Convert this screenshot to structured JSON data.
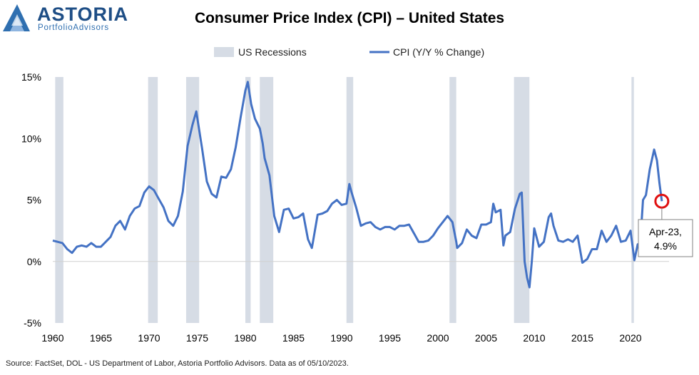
{
  "logo": {
    "name": "ASTORIA",
    "tagline": "PortfolioAdvisors"
  },
  "chart_data": {
    "type": "line",
    "title": "Consumer Price Index (CPI) – United States",
    "xlabel": "",
    "ylabel": "",
    "xlim": [
      1960,
      2024
    ],
    "ylim": [
      -5,
      15
    ],
    "x_ticks": [
      1960,
      1965,
      1970,
      1975,
      1980,
      1985,
      1990,
      1995,
      2000,
      2005,
      2010,
      2015,
      2020
    ],
    "y_ticks": [
      {
        "v": -5,
        "label": "-5%"
      },
      {
        "v": 0,
        "label": "0%"
      },
      {
        "v": 5,
        "label": "5%"
      },
      {
        "v": 10,
        "label": "10%"
      },
      {
        "v": 15,
        "label": "15%"
      }
    ],
    "legend_position": "top-center",
    "legend": [
      {
        "label": "US Recessions",
        "kind": "band"
      },
      {
        "label": "CPI (Y/Y % Change)",
        "kind": "line"
      }
    ],
    "recessions": {
      "name": "US Recessions",
      "color": "#d6dce5",
      "periods": [
        [
          1960.25,
          1961.1
        ],
        [
          1969.9,
          1970.9
        ],
        [
          1973.85,
          1975.2
        ],
        [
          1980.0,
          1980.55
        ],
        [
          1981.5,
          1982.9
        ],
        [
          1990.5,
          1991.2
        ],
        [
          2001.2,
          2001.9
        ],
        [
          2007.9,
          2009.5
        ],
        [
          2020.1,
          2020.35
        ]
      ]
    },
    "series": [
      {
        "name": "CPI (Y/Y % Change)",
        "color": "#4472c4",
        "x": [
          1960.0,
          1960.5,
          1961.0,
          1961.5,
          1962.0,
          1962.5,
          1963.0,
          1963.5,
          1964.0,
          1964.5,
          1965.0,
          1965.5,
          1966.0,
          1966.5,
          1967.0,
          1967.5,
          1968.0,
          1968.5,
          1969.0,
          1969.5,
          1970.0,
          1970.5,
          1971.0,
          1971.5,
          1972.0,
          1972.5,
          1973.0,
          1973.5,
          1974.0,
          1974.5,
          1974.9,
          1975.5,
          1976.0,
          1976.5,
          1977.0,
          1977.5,
          1978.0,
          1978.5,
          1979.0,
          1979.5,
          1980.0,
          1980.25,
          1980.6,
          1981.0,
          1981.5,
          1981.8,
          1982.0,
          1982.5,
          1983.0,
          1983.5,
          1984.0,
          1984.5,
          1985.0,
          1985.5,
          1986.0,
          1986.5,
          1986.9,
          1987.0,
          1987.5,
          1988.0,
          1988.5,
          1989.0,
          1989.5,
          1990.0,
          1990.5,
          1990.8,
          1991.0,
          1991.5,
          1992.0,
          1992.5,
          1993.0,
          1993.5,
          1994.0,
          1994.5,
          1995.0,
          1995.5,
          1996.0,
          1996.5,
          1997.0,
          1997.5,
          1998.0,
          1998.5,
          1999.0,
          1999.5,
          2000.0,
          2000.5,
          2001.0,
          2001.5,
          2001.9,
          2002.0,
          2002.5,
          2003.0,
          2003.5,
          2004.0,
          2004.5,
          2005.0,
          2005.5,
          2005.75,
          2006.0,
          2006.5,
          2006.8,
          2007.0,
          2007.5,
          2008.0,
          2008.5,
          2008.7,
          2009.0,
          2009.25,
          2009.5,
          2009.75,
          2010.0,
          2010.5,
          2011.0,
          2011.5,
          2011.75,
          2012.0,
          2012.5,
          2013.0,
          2013.5,
          2014.0,
          2014.5,
          2015.0,
          2015.5,
          2016.0,
          2016.5,
          2017.0,
          2017.5,
          2018.0,
          2018.5,
          2019.0,
          2019.5,
          2020.0,
          2020.4,
          2020.75,
          2021.0,
          2021.3,
          2021.6,
          2022.0,
          2022.45,
          2022.75,
          2023.0,
          2023.25
        ],
        "values": [
          1.7,
          1.6,
          1.5,
          1.0,
          0.7,
          1.2,
          1.3,
          1.2,
          1.5,
          1.2,
          1.2,
          1.6,
          2.0,
          2.9,
          3.3,
          2.6,
          3.7,
          4.3,
          4.5,
          5.6,
          6.1,
          5.8,
          5.1,
          4.4,
          3.3,
          2.9,
          3.7,
          5.7,
          9.4,
          11.1,
          12.2,
          9.2,
          6.5,
          5.5,
          5.2,
          6.9,
          6.8,
          7.5,
          9.3,
          11.7,
          13.9,
          14.6,
          12.8,
          11.6,
          10.8,
          9.6,
          8.4,
          7.0,
          3.7,
          2.4,
          4.2,
          4.3,
          3.5,
          3.6,
          3.9,
          1.8,
          1.1,
          1.5,
          3.8,
          3.9,
          4.1,
          4.7,
          5.0,
          4.6,
          4.7,
          6.3,
          5.7,
          4.4,
          2.9,
          3.1,
          3.2,
          2.8,
          2.6,
          2.8,
          2.8,
          2.6,
          2.9,
          2.9,
          3.0,
          2.3,
          1.6,
          1.6,
          1.7,
          2.1,
          2.7,
          3.2,
          3.7,
          3.2,
          1.6,
          1.1,
          1.5,
          2.6,
          2.1,
          1.9,
          3.0,
          3.0,
          3.2,
          4.7,
          4.0,
          4.2,
          1.3,
          2.1,
          2.4,
          4.3,
          5.5,
          5.6,
          0.0,
          -1.3,
          -2.1,
          0.0,
          2.7,
          1.2,
          1.6,
          3.6,
          3.9,
          2.9,
          1.7,
          1.6,
          1.8,
          1.6,
          2.1,
          -0.1,
          0.2,
          1.0,
          1.0,
          2.5,
          1.6,
          2.1,
          2.9,
          1.6,
          1.7,
          2.5,
          0.1,
          1.4,
          1.4,
          5.0,
          5.4,
          7.5,
          9.1,
          8.2,
          6.4,
          4.9
        ]
      }
    ],
    "annotations": [
      {
        "text_line1": "Apr-23,",
        "text_line2": "4.9%",
        "x": 2023.25,
        "y": 4.9
      }
    ]
  },
  "source_note": "Source: FactSet, DOL - US Department of Labor, Astoria Portfolio Advisors. Data as of 05/10/2023."
}
